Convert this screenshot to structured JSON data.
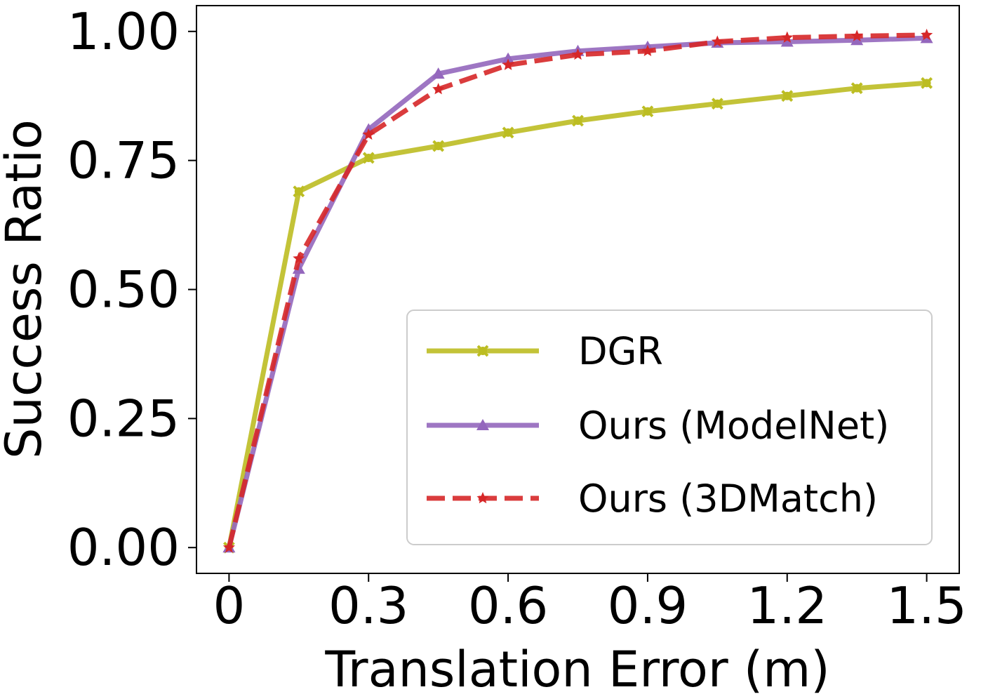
{
  "chart_data": {
    "type": "line",
    "xlabel": "Translation Error (m)",
    "ylabel": "Success Ratio",
    "xlim": [
      -0.07,
      1.57
    ],
    "ylim": [
      -0.05,
      1.05
    ],
    "xticks": [
      0,
      0.3,
      0.6,
      0.9,
      1.2,
      1.5
    ],
    "xtick_labels": [
      "0",
      "0.3",
      "0.6",
      "0.9",
      "1.2",
      "1.5"
    ],
    "yticks": [
      0,
      0.25,
      0.5,
      0.75,
      1.0
    ],
    "ytick_labels": [
      "0.00",
      "0.25",
      "0.50",
      "0.75",
      "1.00"
    ],
    "grid": false,
    "legend_position": "lower-right",
    "x": [
      0,
      0.15,
      0.3,
      0.45,
      0.6,
      0.75,
      0.9,
      1.05,
      1.2,
      1.35,
      1.5
    ],
    "series": [
      {
        "name": "DGR",
        "color": "#bcbd22",
        "linestyle": "solid",
        "marker": "x-icon",
        "values": [
          0.0,
          0.69,
          0.755,
          0.778,
          0.804,
          0.827,
          0.845,
          0.86,
          0.875,
          0.89,
          0.9
        ]
      },
      {
        "name": "Ours (ModelNet)",
        "color": "#9467bd",
        "linestyle": "solid",
        "marker": "triangle-icon",
        "values": [
          0.0,
          0.54,
          0.81,
          0.918,
          0.947,
          0.962,
          0.97,
          0.978,
          0.98,
          0.983,
          0.987
        ]
      },
      {
        "name": "Ours (3DMatch)",
        "color": "#d62728",
        "linestyle": "dashed",
        "marker": "star-icon",
        "values": [
          0.0,
          0.56,
          0.8,
          0.888,
          0.935,
          0.955,
          0.962,
          0.98,
          0.988,
          0.991,
          0.993
        ]
      }
    ]
  }
}
